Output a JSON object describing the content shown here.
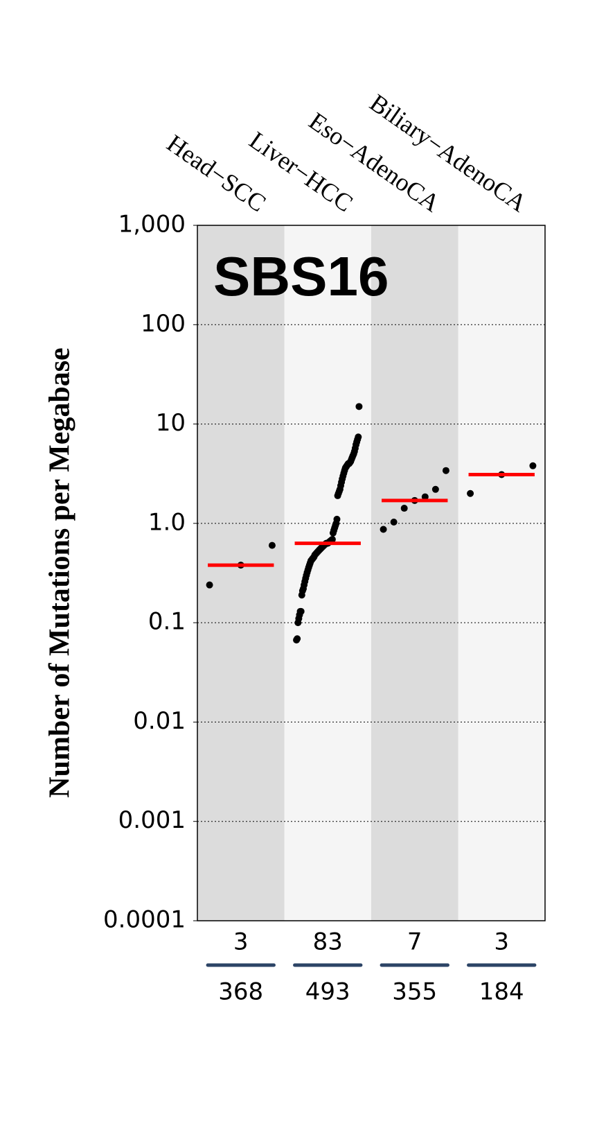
{
  "chart_data": {
    "type": "strip",
    "title": "SBS16",
    "y_label": "Number of Mutations per Megabase",
    "log_scale": true,
    "grid": true,
    "ylim": [
      0.0001,
      1000
    ],
    "yticks": [
      {
        "value": 1000,
        "label": "1,000"
      },
      100,
      10,
      {
        "value": 1,
        "label": "1.0"
      },
      0.1,
      0.01,
      0.001,
      0.0001
    ],
    "point_color": "#000000",
    "median_color": "#ff0000",
    "band_colors": [
      "#dcdcdc",
      "#f5f5f5"
    ],
    "groups": [
      {
        "name": "Head−SCC",
        "count": "3",
        "total": "368",
        "median": 0.38,
        "values": [
          0.24,
          0.38,
          0.6
        ]
      },
      {
        "name": "Liver−HCC",
        "count": "83",
        "total": "493",
        "median": 0.63,
        "values": [
          0.067,
          0.069,
          0.1,
          0.11,
          0.12,
          0.13,
          0.13,
          0.19,
          0.21,
          0.22,
          0.24,
          0.26,
          0.28,
          0.3,
          0.32,
          0.34,
          0.36,
          0.38,
          0.4,
          0.42,
          0.43,
          0.44,
          0.45,
          0.46,
          0.48,
          0.49,
          0.5,
          0.51,
          0.52,
          0.53,
          0.54,
          0.55,
          0.56,
          0.57,
          0.58,
          0.59,
          0.6,
          0.61,
          0.62,
          0.63,
          0.63,
          0.63,
          0.64,
          0.65,
          0.66,
          0.67,
          0.68,
          0.69,
          0.8,
          0.85,
          0.9,
          0.95,
          1.0,
          1.1,
          1.9,
          2.0,
          2.1,
          2.2,
          2.4,
          2.6,
          2.8,
          3.0,
          3.2,
          3.4,
          3.6,
          3.7,
          3.8,
          3.9,
          4.0,
          4.0,
          4.1,
          4.2,
          4.4,
          4.6,
          4.8,
          5.0,
          5.3,
          5.7,
          6.2,
          6.6,
          7.0,
          7.4,
          15
        ]
      },
      {
        "name": "Eso−AdenoCA",
        "count": "7",
        "total": "355",
        "median": 1.7,
        "values": [
          0.87,
          1.03,
          1.42,
          1.7,
          1.85,
          2.2,
          3.4
        ]
      },
      {
        "name": "Biliary−AdenoCA",
        "count": "3",
        "total": "184",
        "median": 3.1,
        "values": [
          2.0,
          3.1,
          3.8
        ]
      }
    ]
  }
}
